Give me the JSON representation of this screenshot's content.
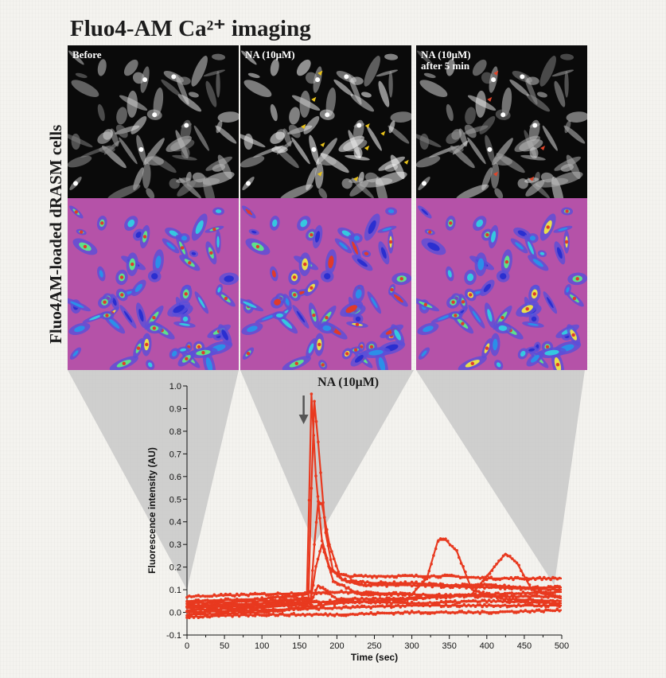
{
  "title": "Fluo4-AM Ca²⁺ imaging",
  "row_label": "Fluo4AM-loaded dRASM cells",
  "panels": [
    {
      "label": "Before",
      "markers": []
    },
    {
      "label": "NA (10μM)",
      "markers": [
        {
          "color": "#e8c21a"
        }
      ]
    },
    {
      "label": "NA (10μM)\nafter 5 min",
      "markers": [
        {
          "color": "#e0452a"
        }
      ]
    }
  ],
  "colors": {
    "series": "#e8391f",
    "heatmap_background": "#b552a8",
    "micrograph_background": "#0a0a0a",
    "arrow": "#555555",
    "cone": "#c8c8c8"
  },
  "chart_data": {
    "type": "line",
    "title": "",
    "xlabel": "Time (sec)",
    "ylabel": "Fluorescence intensity (AU)",
    "xlim": [
      0,
      500
    ],
    "ylim": [
      -0.1,
      1.0
    ],
    "xticks": [
      0,
      50,
      100,
      150,
      200,
      250,
      300,
      350,
      400,
      450,
      500
    ],
    "yticks": [
      -0.1,
      0.0,
      0.1,
      0.2,
      0.3,
      0.4,
      0.5,
      0.6,
      0.7,
      0.8,
      0.9,
      1.0
    ],
    "ytick_labels": [
      "-0.1",
      "0.0",
      "0.1",
      "0.2",
      "0.3",
      "0.4",
      "0.5",
      "0.6",
      "0.7",
      "0.8",
      "0.9",
      "1.0"
    ],
    "annotation": {
      "text": "NA (10μM)",
      "x": 162
    },
    "grid": false,
    "series": [
      {
        "x": [
          0,
          100,
          160,
          163,
          166,
          172,
          180,
          190,
          200,
          215,
          250,
          300,
          350,
          400,
          450,
          500
        ],
        "y": [
          0.05,
          0.06,
          0.08,
          0.5,
          0.96,
          0.6,
          0.32,
          0.2,
          0.17,
          0.16,
          0.16,
          0.16,
          0.16,
          0.15,
          0.15,
          0.15
        ]
      },
      {
        "x": [
          0,
          100,
          162,
          166,
          170,
          175,
          185,
          195,
          210,
          250,
          300,
          350,
          400,
          450,
          500
        ],
        "y": [
          0.04,
          0.05,
          0.06,
          0.55,
          0.93,
          0.75,
          0.35,
          0.18,
          0.14,
          0.13,
          0.13,
          0.12,
          0.12,
          0.11,
          0.11
        ]
      },
      {
        "x": [
          0,
          100,
          165,
          170,
          175,
          180,
          190,
          205,
          230,
          300,
          400,
          500
        ],
        "y": [
          0.03,
          0.04,
          0.06,
          0.3,
          0.49,
          0.48,
          0.3,
          0.15,
          0.12,
          0.12,
          0.11,
          0.1
        ]
      },
      {
        "x": [
          0,
          100,
          165,
          172,
          180,
          195,
          230,
          300,
          320,
          335,
          345,
          360,
          380,
          420,
          500
        ],
        "y": [
          0.02,
          0.03,
          0.05,
          0.2,
          0.3,
          0.14,
          0.08,
          0.08,
          0.15,
          0.32,
          0.32,
          0.27,
          0.1,
          0.06,
          0.05
        ]
      },
      {
        "x": [
          0,
          100,
          165,
          175,
          200,
          300,
          380,
          410,
          425,
          440,
          460,
          500
        ],
        "y": [
          0.01,
          0.02,
          0.04,
          0.12,
          0.06,
          0.06,
          0.08,
          0.2,
          0.26,
          0.22,
          0.1,
          0.06
        ]
      },
      {
        "x": [
          0,
          100,
          200,
          300,
          400,
          500
        ],
        "y": [
          -0.01,
          0.0,
          0.04,
          0.06,
          0.08,
          0.09
        ]
      },
      {
        "x": [
          0,
          100,
          200,
          300,
          400,
          500
        ],
        "y": [
          0.0,
          0.01,
          0.02,
          0.03,
          0.03,
          0.03
        ]
      },
      {
        "x": [
          0,
          100,
          200,
          300,
          400,
          500
        ],
        "y": [
          0.07,
          0.08,
          0.09,
          0.08,
          0.07,
          0.07
        ]
      },
      {
        "x": [
          0,
          100,
          200,
          300,
          400,
          500
        ],
        "y": [
          -0.02,
          -0.01,
          -0.01,
          0.0,
          0.0,
          0.01
        ]
      },
      {
        "x": [
          0,
          100,
          200,
          300,
          400,
          500
        ],
        "y": [
          0.03,
          0.03,
          0.05,
          0.04,
          0.05,
          0.04
        ]
      }
    ]
  }
}
